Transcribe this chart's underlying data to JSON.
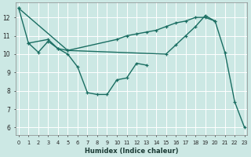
{
  "xlabel": "Humidex (Indice chaleur)",
  "bg_color": "#cce8e4",
  "grid_color": "#ffffff",
  "line_color": "#1a6e62",
  "series": [
    {
      "x": [
        0,
        1,
        2,
        3,
        4,
        5,
        6,
        7,
        8,
        9,
        10,
        11,
        12,
        13
      ],
      "y": [
        12.5,
        10.6,
        10.1,
        10.7,
        10.3,
        10.0,
        9.3,
        7.9,
        7.8,
        7.8,
        8.6,
        8.7,
        9.5,
        9.4
      ]
    },
    {
      "x": [
        1,
        3,
        4,
        5,
        10,
        11,
        12,
        13,
        14,
        15,
        16,
        17,
        18,
        19,
        20
      ],
      "y": [
        10.6,
        10.8,
        10.3,
        10.2,
        10.8,
        11.0,
        11.1,
        11.2,
        11.3,
        11.5,
        11.7,
        11.8,
        12.0,
        12.0,
        11.8
      ]
    },
    {
      "x": [
        0,
        5,
        15,
        16,
        17,
        18,
        19,
        20,
        21,
        22,
        23
      ],
      "y": [
        12.5,
        10.2,
        10.0,
        10.5,
        11.0,
        11.5,
        12.1,
        11.8,
        10.1,
        7.4,
        6.0
      ]
    }
  ],
  "xlim": [
    -0.3,
    23.3
  ],
  "ylim": [
    5.6,
    12.8
  ],
  "yticks": [
    6,
    7,
    8,
    9,
    10,
    11,
    12
  ],
  "xticks": [
    0,
    1,
    2,
    3,
    4,
    5,
    6,
    7,
    8,
    9,
    10,
    11,
    12,
    13,
    14,
    15,
    16,
    17,
    18,
    19,
    20,
    21,
    22,
    23
  ],
  "xtick_labels": [
    "0",
    "1",
    "2",
    "3",
    "4",
    "5",
    "6",
    "7",
    "8",
    "9",
    "10",
    "11",
    "12",
    "13",
    "14",
    "15",
    "16",
    "17",
    "18",
    "19",
    "20",
    "21",
    "22",
    "23"
  ],
  "marker": "+",
  "markersize": 3,
  "linewidth": 1.0
}
